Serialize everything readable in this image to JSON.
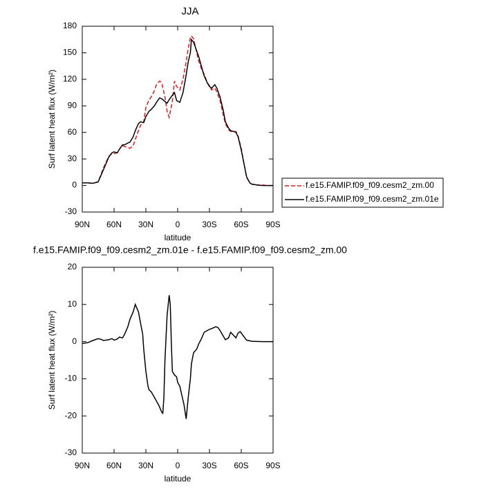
{
  "chart_data": [
    {
      "type": "line",
      "title": "JJA",
      "xlabel": "latitude",
      "ylabel": "Surf latent heat flux (W/m²)",
      "x": [
        90,
        85,
        80,
        75,
        70,
        65,
        62,
        60,
        57,
        55,
        52,
        50,
        47,
        45,
        42,
        40,
        37,
        35,
        32,
        30,
        27,
        25,
        22,
        20,
        17,
        15,
        12,
        10,
        8,
        5,
        3,
        1,
        -2,
        -5,
        -8,
        -10,
        -12,
        -13,
        -15,
        -18,
        -20,
        -23,
        -25,
        -28,
        -30,
        -32,
        -35,
        -37,
        -40,
        -43,
        -45,
        -48,
        -50,
        -53,
        -55,
        -57,
        -60,
        -63,
        -65,
        -68,
        -70,
        -75,
        -80,
        -85,
        -90
      ],
      "series": [
        {
          "name": "f.e15.FAMIP.f09_f09.cesm2_zm.00",
          "color": "#e31a1c",
          "dash": true,
          "values": [
            3,
            3,
            2.5,
            4,
            20,
            33,
            36,
            36,
            37,
            41,
            45,
            44,
            43,
            42,
            45,
            52,
            62,
            68,
            72,
            88,
            97,
            100,
            107,
            114,
            118,
            116,
            100,
            84,
            77,
            95,
            118,
            112,
            108,
            120,
            140,
            155,
            167,
            169,
            166,
            150,
            140,
            130,
            126,
            116,
            113,
            108,
            110,
            106,
            96,
            80,
            70,
            63,
            61,
            61,
            61,
            56,
            42,
            22,
            9,
            3,
            1.5,
            0.5,
            0.5,
            0,
            0
          ]
        },
        {
          "name": "f.e15.FAMIP.f09_f09.cesm2_zm.01e",
          "color": "#000000",
          "dash": false,
          "values": [
            3,
            3,
            2.5,
            4,
            18,
            32,
            37,
            38,
            37,
            41,
            46,
            46,
            48,
            49,
            55,
            62,
            70,
            72,
            71,
            78,
            84,
            86,
            90,
            94,
            99,
            98,
            95,
            93,
            97,
            102,
            105,
            96,
            94,
            105,
            125,
            140,
            150,
            165,
            162,
            152,
            145,
            132,
            124,
            116,
            112,
            110,
            114,
            110,
            100,
            85,
            72,
            65,
            62,
            61,
            60,
            55,
            40,
            22,
            10,
            3,
            1.5,
            0.5,
            0,
            0,
            0
          ]
        }
      ],
      "xlim": [
        90,
        -90
      ],
      "xticks": [
        {
          "value": 90,
          "label": "90N"
        },
        {
          "value": 60,
          "label": "60N"
        },
        {
          "value": 30,
          "label": "30N"
        },
        0,
        {
          "value": -30,
          "label": "30S"
        },
        {
          "value": -60,
          "label": "60S"
        },
        {
          "value": -90,
          "label": "90S"
        }
      ],
      "ylim": [
        -30,
        180
      ],
      "yticks": [
        -30,
        0,
        30,
        60,
        90,
        120,
        150,
        180
      ],
      "legend": "right"
    },
    {
      "type": "line",
      "title": "f.e15.FAMIP.f09_f09.cesm2_zm.01e - f.e15.FAMIP.f09_f09.cesm2_zm.00",
      "xlabel": "latitude",
      "ylabel": "Surf latent heat flux (W/m²)",
      "x": [
        90,
        85,
        80,
        75,
        72,
        70,
        65,
        62,
        60,
        57,
        55,
        52,
        50,
        47,
        45,
        42,
        40,
        37,
        35,
        33,
        32,
        30,
        28,
        27,
        25,
        22,
        20,
        18,
        15,
        14,
        13,
        12,
        10,
        8,
        7,
        6,
        5,
        3,
        1,
        0,
        -2,
        -6,
        -8,
        -10,
        -12,
        -13,
        -15,
        -18,
        -20,
        -22,
        -25,
        -28,
        -30,
        -32,
        -36,
        -38,
        -40,
        -43,
        -45,
        -48,
        -50,
        -55,
        -57,
        -59,
        -62,
        -65,
        -70,
        -80,
        -90
      ],
      "series": [
        {
          "color": "#000000",
          "values": [
            -0.5,
            -0.3,
            0.3,
            0.8,
            0.6,
            0.3,
            0.5,
            0.8,
            0.4,
            0.7,
            1.2,
            1,
            2,
            4,
            6,
            8,
            10,
            8,
            5,
            2,
            -2,
            -8,
            -12,
            -13,
            -13.5,
            -15,
            -16,
            -17,
            -19,
            -19.3,
            -15,
            -5,
            7,
            12.5,
            10,
            0,
            -8,
            -9,
            -9.5,
            -11,
            -12,
            -17,
            -20.8,
            -15,
            -10,
            -6,
            -3,
            -2,
            -0.5,
            0.5,
            2.5,
            3,
            3.3,
            3.5,
            4,
            3.8,
            3,
            1.5,
            0.5,
            1,
            2.5,
            1,
            2.3,
            2.7,
            1.5,
            0.4,
            0.1,
            0,
            0
          ]
        }
      ],
      "xlim": [
        90,
        -90
      ],
      "xticks": [
        {
          "value": 90,
          "label": "90N"
        },
        {
          "value": 60,
          "label": "60N"
        },
        {
          "value": 30,
          "label": "30N"
        },
        0,
        {
          "value": -30,
          "label": "30S"
        },
        {
          "value": -60,
          "label": "60S"
        },
        {
          "value": -90,
          "label": "90S"
        }
      ],
      "ylim": [
        -30,
        20
      ],
      "yticks": [
        -30,
        -20,
        -10,
        0,
        10,
        20
      ]
    }
  ]
}
